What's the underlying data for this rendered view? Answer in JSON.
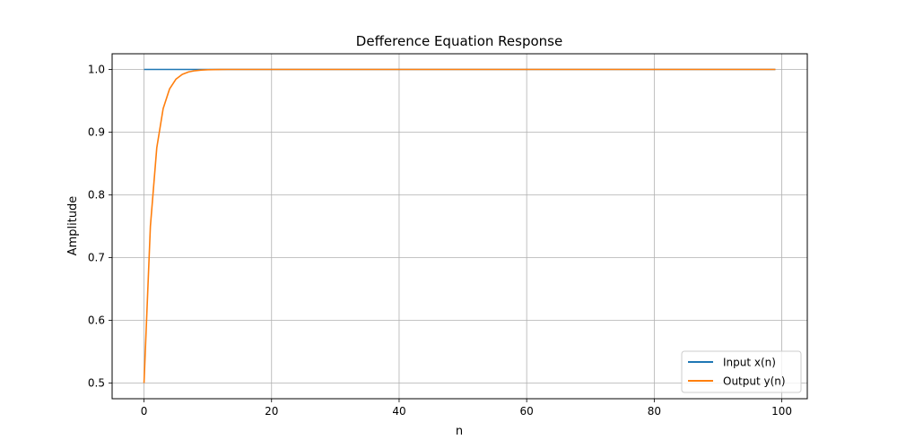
{
  "chart_data": {
    "type": "line",
    "title": "Defference Equation Response",
    "xlabel": "n",
    "ylabel": "Amplitude",
    "xlim": [
      -5,
      104
    ],
    "ylim": [
      0.475,
      1.025
    ],
    "xticks": [
      0,
      20,
      40,
      60,
      80,
      100
    ],
    "yticks": [
      0.5,
      0.6,
      0.7,
      0.8,
      0.9,
      1.0
    ],
    "ytick_labels": [
      "0.5",
      "0.6",
      "0.7",
      "0.8",
      "0.9",
      "1.0"
    ],
    "grid": true,
    "legend_position": "lower-right",
    "x": [
      0,
      1,
      2,
      3,
      4,
      5,
      6,
      7,
      8,
      9,
      10,
      11,
      12,
      13,
      14,
      15,
      16,
      17,
      18,
      19,
      20,
      21,
      22,
      23,
      24,
      25,
      26,
      27,
      28,
      29,
      30,
      31,
      32,
      33,
      34,
      35,
      36,
      37,
      38,
      39,
      40,
      41,
      42,
      43,
      44,
      45,
      46,
      47,
      48,
      49,
      50,
      51,
      52,
      53,
      54,
      55,
      56,
      57,
      58,
      59,
      60,
      61,
      62,
      63,
      64,
      65,
      66,
      67,
      68,
      69,
      70,
      71,
      72,
      73,
      74,
      75,
      76,
      77,
      78,
      79,
      80,
      81,
      82,
      83,
      84,
      85,
      86,
      87,
      88,
      89,
      90,
      91,
      92,
      93,
      94,
      95,
      96,
      97,
      98,
      99
    ],
    "series": [
      {
        "name": "Input x(n)",
        "color": "#1f77b4",
        "values": [
          1,
          1,
          1,
          1,
          1,
          1,
          1,
          1,
          1,
          1,
          1,
          1,
          1,
          1,
          1,
          1,
          1,
          1,
          1,
          1,
          1,
          1,
          1,
          1,
          1,
          1,
          1,
          1,
          1,
          1,
          1,
          1,
          1,
          1,
          1,
          1,
          1,
          1,
          1,
          1,
          1,
          1,
          1,
          1,
          1,
          1,
          1,
          1,
          1,
          1,
          1,
          1,
          1,
          1,
          1,
          1,
          1,
          1,
          1,
          1,
          1,
          1,
          1,
          1,
          1,
          1,
          1,
          1,
          1,
          1,
          1,
          1,
          1,
          1,
          1,
          1,
          1,
          1,
          1,
          1,
          1,
          1,
          1,
          1,
          1,
          1,
          1,
          1,
          1,
          1,
          1,
          1,
          1,
          1,
          1,
          1,
          1,
          1,
          1,
          1
        ]
      },
      {
        "name": "Output y(n)",
        "color": "#ff7f0e",
        "values": [
          0.5,
          0.75,
          0.875,
          0.9375,
          0.9688,
          0.9844,
          0.9922,
          0.9961,
          0.998,
          0.999,
          0.9995,
          0.9998,
          0.9999,
          1,
          1,
          1,
          1,
          1,
          1,
          1,
          1,
          1,
          1,
          1,
          1,
          1,
          1,
          1,
          1,
          1,
          1,
          1,
          1,
          1,
          1,
          1,
          1,
          1,
          1,
          1,
          1,
          1,
          1,
          1,
          1,
          1,
          1,
          1,
          1,
          1,
          1,
          1,
          1,
          1,
          1,
          1,
          1,
          1,
          1,
          1,
          1,
          1,
          1,
          1,
          1,
          1,
          1,
          1,
          1,
          1,
          1,
          1,
          1,
          1,
          1,
          1,
          1,
          1,
          1,
          1,
          1,
          1,
          1,
          1,
          1,
          1,
          1,
          1,
          1,
          1,
          1,
          1,
          1,
          1,
          1,
          1,
          1,
          1,
          1,
          1
        ]
      }
    ]
  }
}
